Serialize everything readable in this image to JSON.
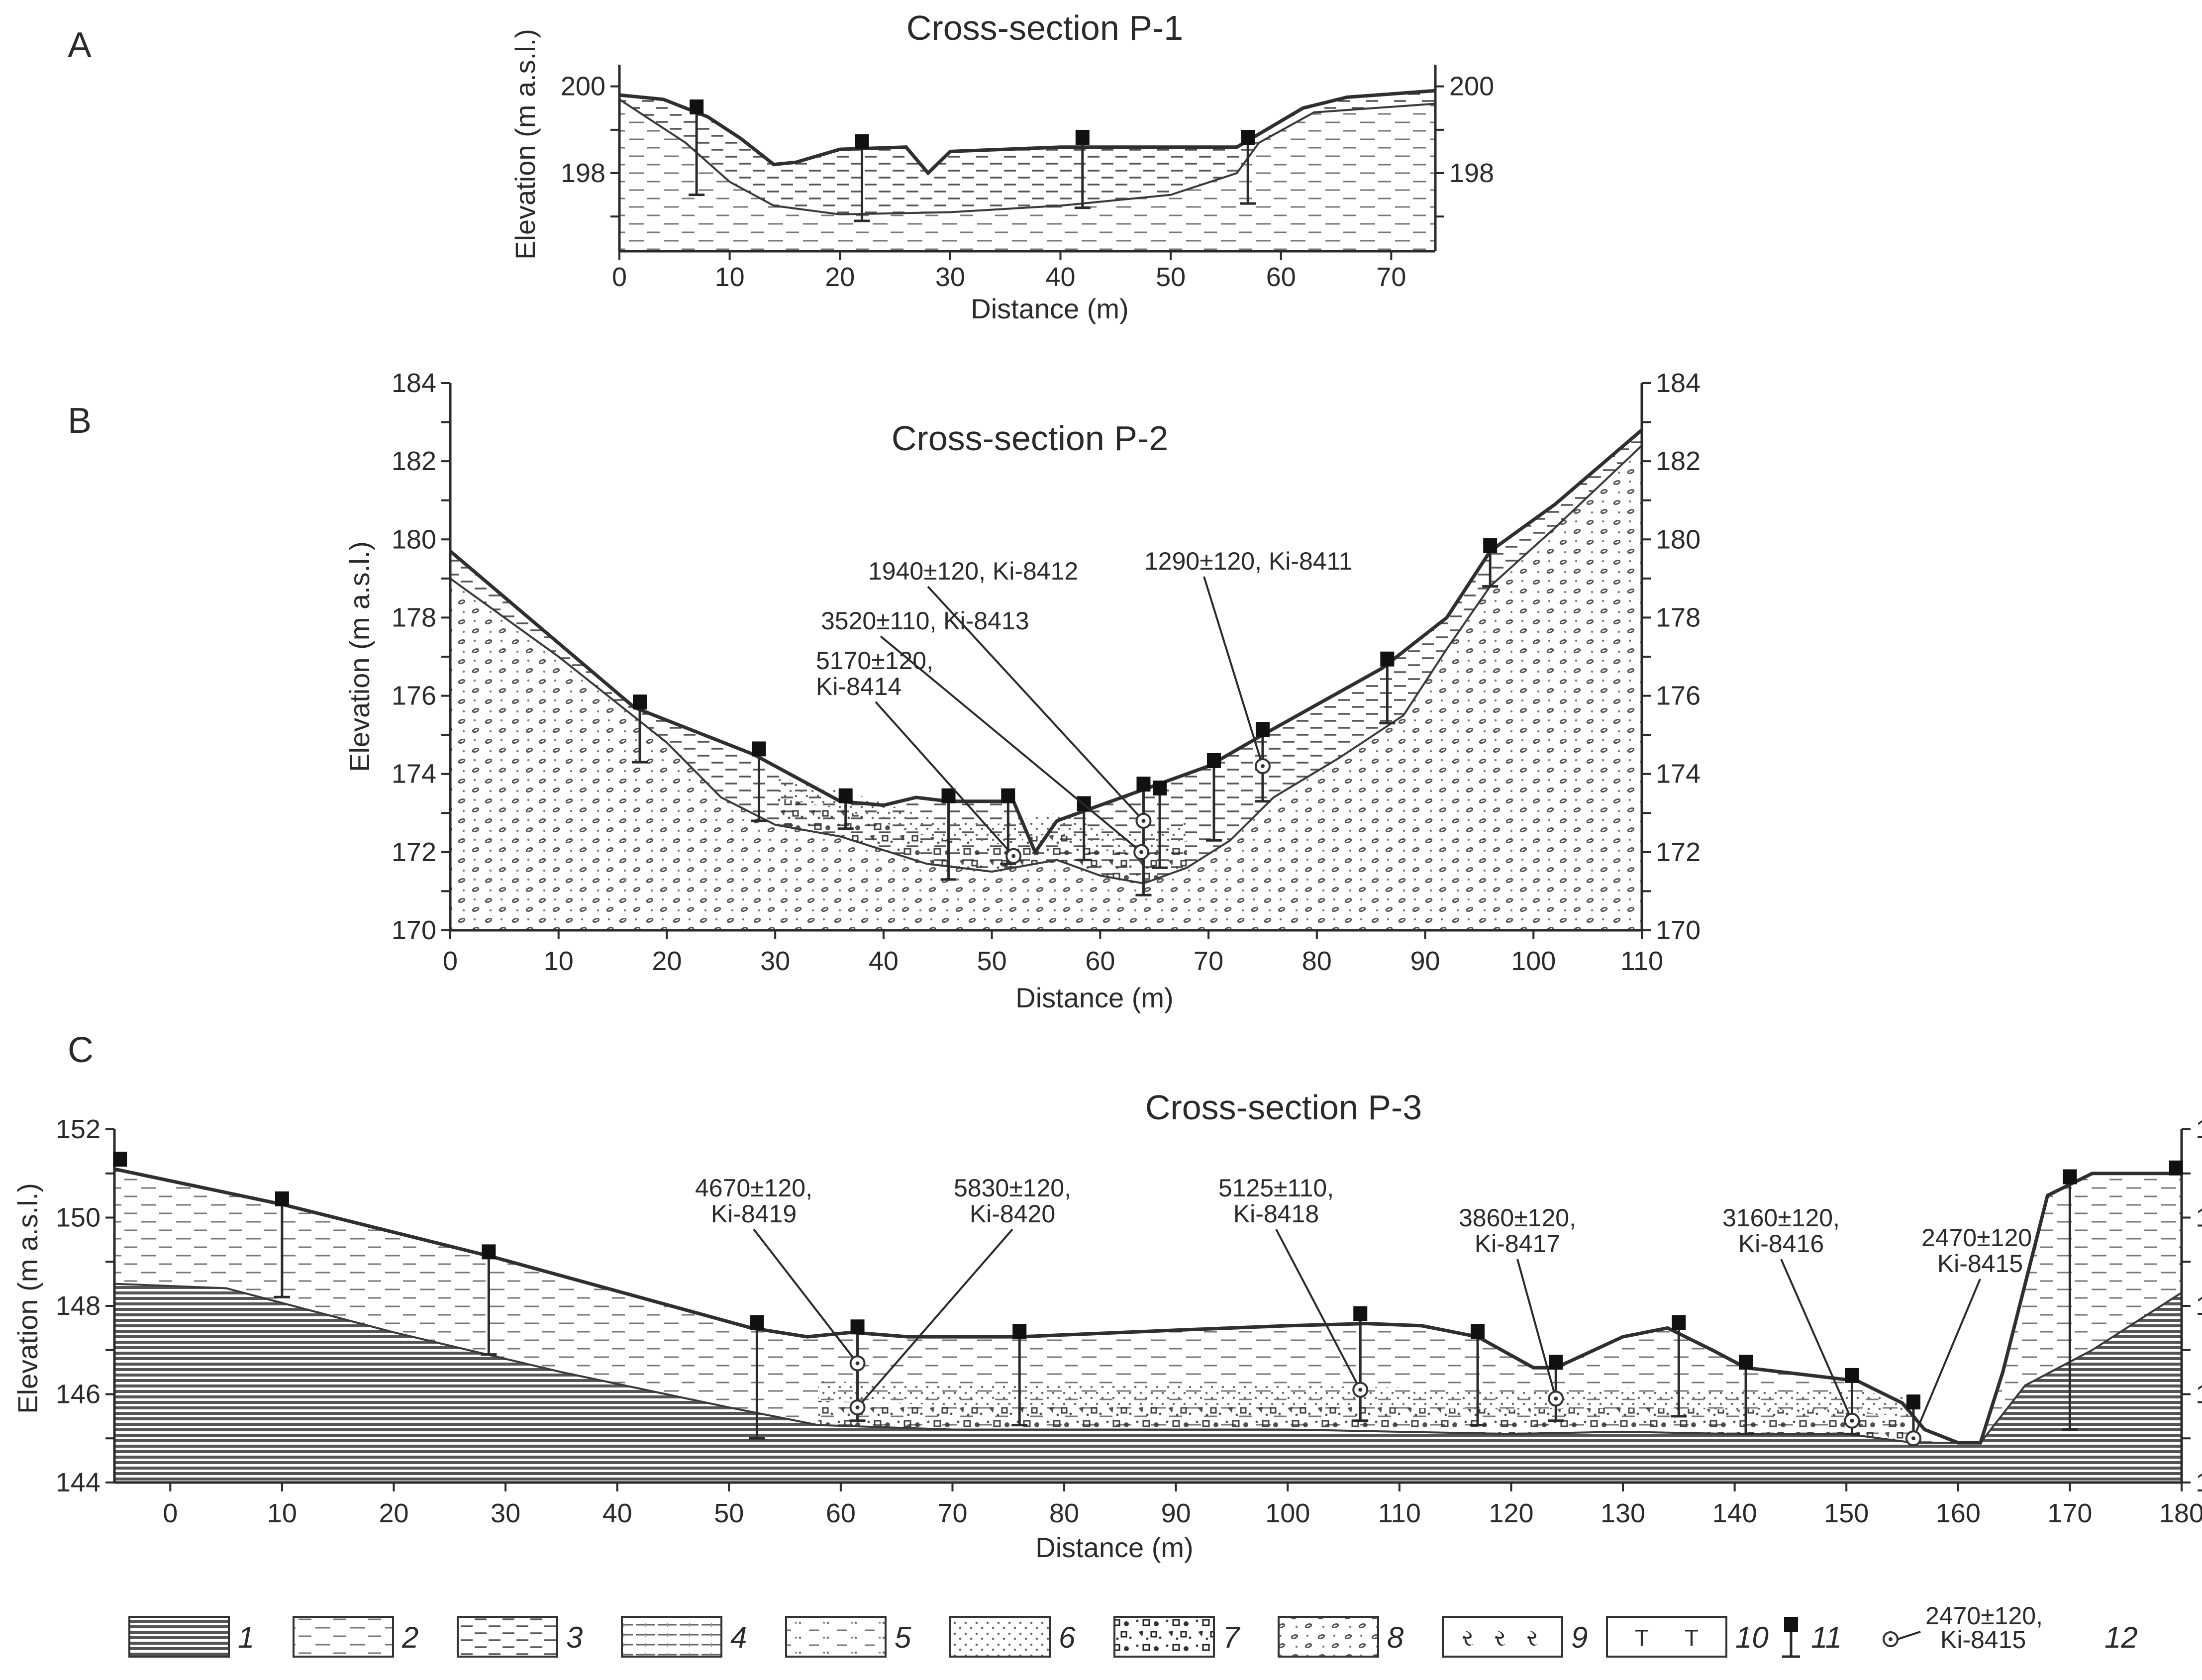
{
  "panels": [
    {
      "letter": "A",
      "chart_data": {
        "type": "cross-section",
        "title": "Cross-section P-1",
        "xlabel": "Distance (m)",
        "ylabel": "Elevation (m a.s.l.)",
        "xlim": [
          0,
          74
        ],
        "ylim": [
          196.2,
          200.5
        ],
        "xticks": [
          0,
          10,
          20,
          30,
          40,
          50,
          60,
          70
        ],
        "yticks_labeled": [
          198,
          200
        ],
        "surface": [
          [
            0,
            199.8
          ],
          [
            4,
            199.7
          ],
          [
            8,
            199.3
          ],
          [
            11,
            198.8
          ],
          [
            14,
            198.2
          ],
          [
            16,
            198.25
          ],
          [
            20,
            198.55
          ],
          [
            26,
            198.6
          ],
          [
            28,
            198.0
          ],
          [
            30,
            198.5
          ],
          [
            40,
            198.6
          ],
          [
            56,
            198.6
          ],
          [
            58,
            198.9
          ],
          [
            62,
            199.5
          ],
          [
            66,
            199.75
          ],
          [
            74,
            199.9
          ]
        ],
        "base": [
          [
            0,
            199.7
          ],
          [
            6,
            198.7
          ],
          [
            10,
            197.8
          ],
          [
            14,
            197.25
          ],
          [
            20,
            197.05
          ],
          [
            30,
            197.1
          ],
          [
            40,
            197.25
          ],
          [
            50,
            197.5
          ],
          [
            56,
            198.0
          ],
          [
            58,
            198.7
          ],
          [
            63,
            199.4
          ],
          [
            74,
            199.6
          ]
        ],
        "boreholes": [
          {
            "x": 7,
            "top": 199.4,
            "bottom": 197.5
          },
          {
            "x": 22,
            "top": 198.6,
            "bottom": 196.9
          },
          {
            "x": 42,
            "top": 198.7,
            "bottom": 197.2
          },
          {
            "x": 57,
            "top": 198.7,
            "bottom": 197.3
          }
        ],
        "dates": []
      }
    },
    {
      "letter": "B",
      "chart_data": {
        "type": "cross-section",
        "title": "Cross-section P-2",
        "xlabel": "Distance (m)",
        "ylabel": "Elevation (m a.s.l.)",
        "xlim": [
          0,
          110
        ],
        "ylim": [
          170,
          184
        ],
        "xticks": [
          0,
          10,
          20,
          30,
          40,
          50,
          60,
          70,
          80,
          90,
          100,
          110
        ],
        "yticks_labeled": [
          170,
          172,
          174,
          176,
          178,
          180,
          182,
          184
        ],
        "surface": [
          [
            0,
            179.7
          ],
          [
            17,
            175.7
          ],
          [
            28,
            174.5
          ],
          [
            36,
            173.3
          ],
          [
            40,
            173.2
          ],
          [
            43,
            173.4
          ],
          [
            46,
            173.3
          ],
          [
            52,
            173.3
          ],
          [
            54,
            172.0
          ],
          [
            56,
            172.8
          ],
          [
            63,
            173.5
          ],
          [
            70,
            174.2
          ],
          [
            75,
            175.0
          ],
          [
            86,
            176.7
          ],
          [
            92,
            178.0
          ],
          [
            96,
            179.7
          ],
          [
            102,
            180.9
          ],
          [
            110,
            182.8
          ]
        ],
        "base": [
          [
            0,
            179.0
          ],
          [
            10,
            177.0
          ],
          [
            20,
            174.8
          ],
          [
            25,
            173.4
          ],
          [
            30,
            172.7
          ],
          [
            36,
            172.4
          ],
          [
            44,
            171.7
          ],
          [
            50,
            171.5
          ],
          [
            56,
            171.8
          ],
          [
            60,
            171.4
          ],
          [
            64,
            171.2
          ],
          [
            68,
            171.6
          ],
          [
            72,
            172.3
          ],
          [
            76,
            173.4
          ],
          [
            82,
            174.4
          ],
          [
            88,
            175.5
          ],
          [
            92,
            177.2
          ],
          [
            96,
            178.8
          ],
          [
            102,
            180.3
          ],
          [
            110,
            182.4
          ]
        ],
        "boreholes": [
          {
            "x": 17.5,
            "top": 175.7,
            "bottom": 174.3
          },
          {
            "x": 28.5,
            "top": 174.5,
            "bottom": 172.8
          },
          {
            "x": 36.5,
            "top": 173.3,
            "bottom": 172.6
          },
          {
            "x": 46,
            "top": 173.3,
            "bottom": 171.3
          },
          {
            "x": 51.5,
            "top": 173.3,
            "bottom": 171.7
          },
          {
            "x": 58.5,
            "top": 173.1,
            "bottom": 171.8
          },
          {
            "x": 64,
            "top": 173.6,
            "bottom": 170.9
          },
          {
            "x": 65.5,
            "top": 173.5,
            "bottom": 171.6
          },
          {
            "x": 70.5,
            "top": 174.2,
            "bottom": 172.3
          },
          {
            "x": 75,
            "top": 175.0,
            "bottom": 173.3
          },
          {
            "x": 86.5,
            "top": 176.8,
            "bottom": 175.3
          },
          {
            "x": 96,
            "top": 179.7,
            "bottom": 178.8
          }
        ],
        "dates": [
          {
            "lines": [
              "1940±120, Ki-8412"
            ],
            "point": [
              64,
              172.8
            ]
          },
          {
            "lines": [
              "3520±110, Ki-8413"
            ],
            "point": [
              63.8,
              172.0
            ]
          },
          {
            "lines": [
              "5170±120,",
              "Ki-8414"
            ],
            "point": [
              52,
              171.9
            ]
          },
          {
            "lines": [
              "1290±120, Ki-8411"
            ],
            "point": [
              75,
              174.2
            ]
          }
        ]
      }
    },
    {
      "letter": "C",
      "chart_data": {
        "type": "cross-section",
        "title": "Cross-section P-3",
        "xlabel": "Distance (m)",
        "ylabel": "Elevation (m a.s.l.)",
        "xlim": [
          -5,
          180
        ],
        "ylim": [
          144,
          152
        ],
        "xticks": [
          0,
          10,
          20,
          30,
          40,
          50,
          60,
          70,
          80,
          90,
          100,
          110,
          120,
          130,
          140,
          150,
          160,
          170,
          180
        ],
        "yticks_labeled": [
          144,
          146,
          148,
          150,
          152
        ],
        "surface": [
          [
            -5,
            151.1
          ],
          [
            10,
            150.3
          ],
          [
            29,
            149.1
          ],
          [
            52,
            147.5
          ],
          [
            57,
            147.3
          ],
          [
            61,
            147.4
          ],
          [
            66,
            147.3
          ],
          [
            76,
            147.3
          ],
          [
            90,
            147.45
          ],
          [
            100,
            147.55
          ],
          [
            107,
            147.6
          ],
          [
            112,
            147.55
          ],
          [
            117,
            147.3
          ],
          [
            122,
            146.6
          ],
          [
            124,
            146.6
          ],
          [
            130,
            147.3
          ],
          [
            134,
            147.5
          ],
          [
            138,
            147.0
          ],
          [
            141,
            146.6
          ],
          [
            151,
            146.3
          ],
          [
            155,
            145.8
          ],
          [
            157,
            145.2
          ],
          [
            160,
            144.9
          ],
          [
            162,
            144.9
          ],
          [
            164,
            146.5
          ],
          [
            168,
            150.5
          ],
          [
            172,
            151.0
          ],
          [
            180,
            151.0
          ]
        ],
        "base": [
          [
            -5,
            148.5
          ],
          [
            5,
            148.4
          ],
          [
            20,
            147.4
          ],
          [
            35,
            146.5
          ],
          [
            50,
            145.7
          ],
          [
            58,
            145.3
          ],
          [
            70,
            145.2
          ],
          [
            100,
            145.2
          ],
          [
            120,
            145.1
          ],
          [
            130,
            145.15
          ],
          [
            140,
            145.1
          ],
          [
            150,
            145.1
          ],
          [
            156,
            144.9
          ],
          [
            162,
            144.9
          ],
          [
            166,
            146.2
          ],
          [
            172,
            147.0
          ],
          [
            180,
            148.3
          ]
        ],
        "boreholes": [
          {
            "x": -4.5,
            "top": 151.2,
            "bottom": 151.2
          },
          {
            "x": 10,
            "top": 150.3,
            "bottom": 148.2
          },
          {
            "x": 28.5,
            "top": 149.1,
            "bottom": 146.9
          },
          {
            "x": 52.5,
            "top": 147.5,
            "bottom": 145.0
          },
          {
            "x": 61.5,
            "top": 147.4,
            "bottom": 145.4
          },
          {
            "x": 76,
            "top": 147.3,
            "bottom": 145.3
          },
          {
            "x": 106.5,
            "top": 147.7,
            "bottom": 145.4
          },
          {
            "x": 117,
            "top": 147.3,
            "bottom": 145.3
          },
          {
            "x": 124,
            "top": 146.6,
            "bottom": 145.4
          },
          {
            "x": 135,
            "top": 147.5,
            "bottom": 145.5
          },
          {
            "x": 141,
            "top": 146.6,
            "bottom": 145.1
          },
          {
            "x": 150.5,
            "top": 146.3,
            "bottom": 145.1
          },
          {
            "x": 156,
            "top": 145.7,
            "bottom": 145.0
          },
          {
            "x": 170,
            "top": 150.8,
            "bottom": 145.2
          },
          {
            "x": 179.5,
            "top": 151.0,
            "bottom": 151.0
          }
        ],
        "dates": [
          {
            "lines": [
              "4670±120,",
              "Ki-8419"
            ],
            "point": [
              61.5,
              146.7
            ]
          },
          {
            "lines": [
              "5830±120,",
              "Ki-8420"
            ],
            "point": [
              61.5,
              145.7
            ]
          },
          {
            "lines": [
              "5125±110,",
              "Ki-8418"
            ],
            "point": [
              106.5,
              146.1
            ]
          },
          {
            "lines": [
              "3860±120,",
              "Ki-8417"
            ],
            "point": [
              124,
              145.9
            ]
          },
          {
            "lines": [
              "3160±120,",
              "Ki-8416"
            ],
            "point": [
              150.5,
              145.4
            ]
          },
          {
            "lines": [
              "2470±120,",
              "Ki-8415"
            ],
            "point": [
              156,
              145.0
            ]
          }
        ]
      }
    }
  ],
  "legend": {
    "items": [
      {
        "number": "1",
        "pattern": "hatch-dense"
      },
      {
        "number": "2",
        "pattern": "dash-sparse"
      },
      {
        "number": "3",
        "pattern": "dash-medium"
      },
      {
        "number": "4",
        "pattern": "dash-vertical-grid"
      },
      {
        "number": "5",
        "pattern": "dash-dotted"
      },
      {
        "number": "6",
        "pattern": "dots"
      },
      {
        "number": "7",
        "pattern": "gravel"
      },
      {
        "number": "8",
        "pattern": "pebbles"
      },
      {
        "number": "9",
        "pattern": "peat-symbols"
      },
      {
        "number": "10",
        "pattern": "t-symbols"
      },
      {
        "number": "11",
        "pattern": "borehole"
      },
      {
        "number": "12",
        "pattern": "date-point"
      }
    ],
    "date_example": [
      "2470±120,",
      "Ki-8415"
    ],
    "peat_symbol": "ર",
    "t_symbol": "T"
  }
}
